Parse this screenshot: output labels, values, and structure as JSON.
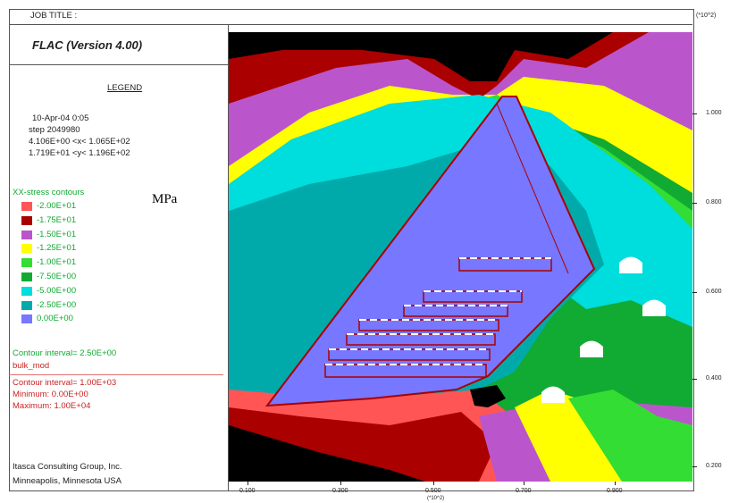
{
  "header": {
    "job_title": "JOB TITLE :",
    "scale_right": "(*10^2)"
  },
  "legend": {
    "program": "FLAC (Version 4.00)",
    "heading": "LEGEND",
    "date": "10-Apr-04  0:05",
    "step": "step  2049980",
    "x_range": "4.106E+00 <x< 1.065E+02",
    "y_range": "1.719E+01 <y< 1.196E+02",
    "contour_title": "XX-stress contours",
    "unit": "MPa",
    "contour_levels": [
      {
        "label": "-2.00E+01",
        "color": "#ff5555"
      },
      {
        "label": "-1.75E+01",
        "color": "#aa0000"
      },
      {
        "label": "-1.50E+01",
        "color": "#bb55cc"
      },
      {
        "label": "-1.25E+01",
        "color": "#ffff00"
      },
      {
        "label": "-1.00E+01",
        "color": "#33dd33"
      },
      {
        "label": "-7.50E+00",
        "color": "#11aa33"
      },
      {
        "label": "-5.00E+00",
        "color": "#00dddd"
      },
      {
        "label": "-2.50E+00",
        "color": "#00aaaa"
      },
      {
        "label": "0.00E+00",
        "color": "#7777ff"
      }
    ],
    "contour_interval": "Contour interval= 2.50E+00",
    "bulk_mod": "bulk_mod",
    "bulk_interval": "Contour interval= 1.00E+03",
    "minimum": "Minimum:  0.00E+00",
    "maximum": "Maximum:  1.00E+04",
    "company": "Itasca Consulting Group, Inc.",
    "location": "Minneapolis, Minnesota  USA"
  },
  "axes": {
    "y_ticks": [
      "1.000",
      "0.800",
      "0.600",
      "0.400",
      "0.200"
    ],
    "x_ticks": [
      "0.100",
      "0.300",
      "0.500",
      "0.700",
      "0.900"
    ],
    "x_scale": "(*10^2)"
  }
}
